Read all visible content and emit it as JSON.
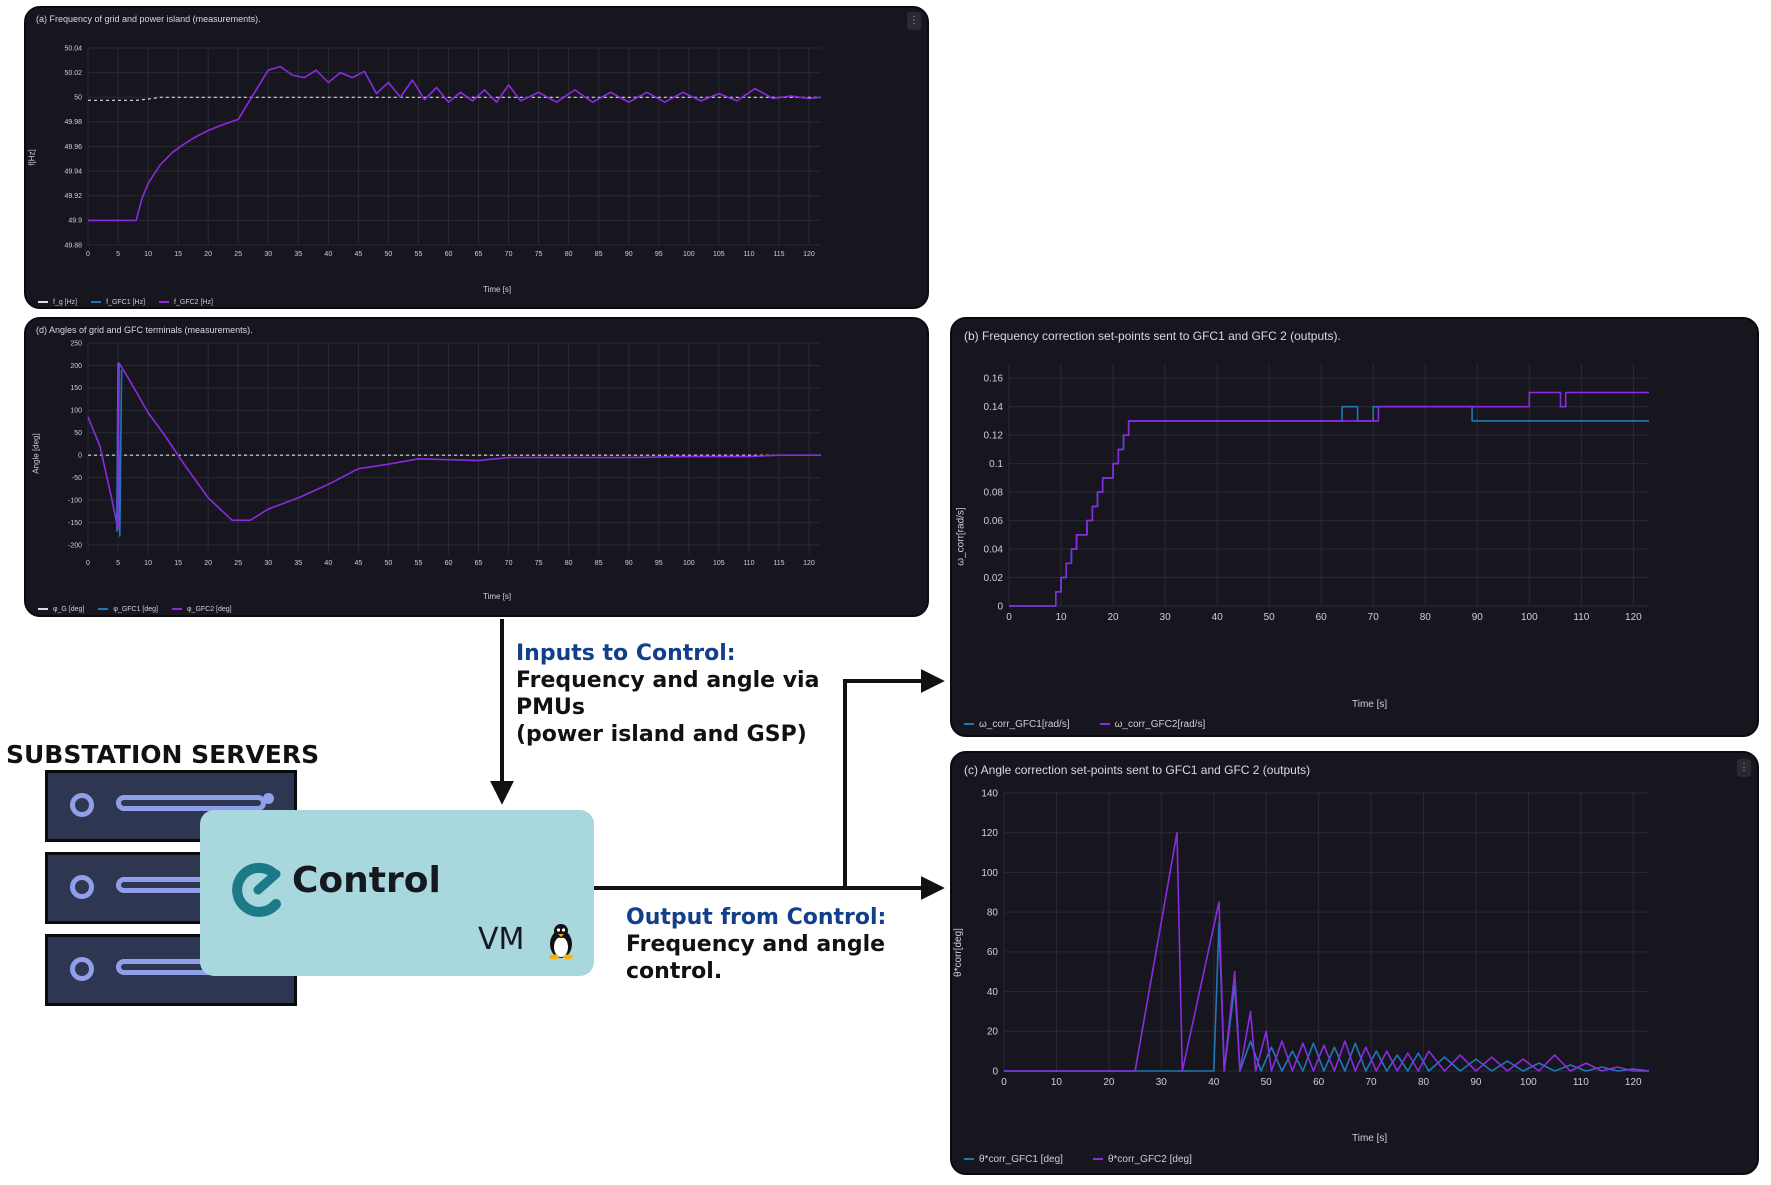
{
  "colors": {
    "bg": "#17161f",
    "grid": "#2a2a35",
    "purple": "#8a2be2",
    "blue": "#1f78b4",
    "white": "#dddddd",
    "highlight": "#123f8a"
  },
  "panel_a": {
    "title": "(a) Frequency of grid and power island (measurements).",
    "ylabel": "f[Hz]",
    "xlabel": "Time [s]",
    "legend": [
      "f_g [Hz]",
      "f_GFC1 [Hz]",
      "f_GFC2 [Hz]"
    ]
  },
  "panel_d": {
    "title": "(d) Angles of grid and GFC terminals (measurements).",
    "ylabel": "Angle [deg]",
    "xlabel": "Time [s]",
    "legend": [
      "φ_G [deg]",
      "φ_GFC1 [deg]",
      "φ_GFC2 [deg]"
    ]
  },
  "panel_b": {
    "title": "(b) Frequency correction set-points sent to GFC1 and GFC 2 (outputs).",
    "ylabel": "ω_corr[rad/s]",
    "xlabel": "Time [s]",
    "legend": [
      "ω_corr_GFC1[rad/s]",
      "ω_corr_GFC2[rad/s]"
    ]
  },
  "panel_c": {
    "title": "(c) Angle correction set-points sent to GFC1 and GFC 2 (outputs)",
    "ylabel": "θ*corr[deg]",
    "xlabel": "Time [s]",
    "legend": [
      "θ*corr_GFC1 [deg]",
      "θ*corr_GFC2 [deg]"
    ]
  },
  "inputs_text": {
    "heading": "Inputs to Control:",
    "line1": "Frequency and angle via",
    "line2": "PMUs",
    "line3": "(power island and GSP)"
  },
  "output_text": {
    "heading": "Output from Control:",
    "line1": "Frequency and angle",
    "line2": "control."
  },
  "servers_title": "SUBSTATION SERVERS",
  "vm": {
    "brand": "Control",
    "label": "VM"
  },
  "chart_data": [
    {
      "id": "a",
      "type": "line",
      "title": "(a) Frequency of grid and power island (measurements).",
      "xlabel": "Time [s]",
      "ylabel": "f[Hz]",
      "xlim": [
        0,
        122
      ],
      "ylim": [
        49.88,
        50.04
      ],
      "xticks": [
        0,
        5,
        10,
        15,
        20,
        25,
        30,
        35,
        40,
        45,
        50,
        55,
        60,
        65,
        70,
        75,
        80,
        85,
        90,
        95,
        100,
        105,
        110,
        115,
        120
      ],
      "yticks": [
        49.88,
        49.9,
        49.92,
        49.94,
        49.96,
        49.98,
        50,
        50.02,
        50.04
      ],
      "ytick_labels": [
        "49.88",
        "49.9",
        "49.92",
        "49.94",
        "49.96",
        "49.98",
        "50",
        "50.02",
        "50.04"
      ],
      "series": [
        {
          "name": "f_g [Hz]",
          "color": "#dddddd",
          "dashed": true,
          "x": [
            0,
            5,
            8,
            10,
            12,
            122
          ],
          "y": [
            49.9975,
            49.9975,
            49.9975,
            49.9985,
            50,
            50
          ]
        },
        {
          "name": "f_GFC2 [Hz]",
          "color": "#8a2be2",
          "x": [
            0,
            4,
            8,
            9,
            10,
            12,
            14,
            16,
            18,
            20,
            22,
            25,
            27,
            30,
            32,
            34,
            36,
            38,
            40,
            42,
            44,
            46,
            48,
            50,
            52,
            54,
            56,
            58,
            60,
            62,
            64,
            66,
            68,
            70,
            72,
            75,
            78,
            81,
            84,
            87,
            90,
            93,
            96,
            99,
            102,
            105,
            108,
            111,
            114,
            117,
            120,
            122
          ],
          "y": [
            49.9,
            49.9,
            49.9,
            49.918,
            49.93,
            49.945,
            49.955,
            49.962,
            49.968,
            49.973,
            49.977,
            49.982,
            49.998,
            50.022,
            50.025,
            50.018,
            50.016,
            50.022,
            50.012,
            50.02,
            50.016,
            50.021,
            50.003,
            50.012,
            50.0,
            50.014,
            49.998,
            50.008,
            49.996,
            50.004,
            49.997,
            50.006,
            49.996,
            50.01,
            49.997,
            50.004,
            49.996,
            50.006,
            49.996,
            50.004,
            49.996,
            50.004,
            49.996,
            50.004,
            49.997,
            50.003,
            49.997,
            50.007,
            49.999,
            50.001,
            49.999,
            50.0
          ]
        }
      ],
      "legend_entries": [
        "f_g [Hz]",
        "f_GFC1 [Hz]",
        "f_GFC2 [Hz]"
      ]
    },
    {
      "id": "d",
      "type": "line",
      "title": "(d) Angles of grid and GFC terminals (measurements).",
      "xlabel": "Time [s]",
      "ylabel": "Angle [deg]",
      "xlim": [
        0,
        122
      ],
      "ylim": [
        -220,
        250
      ],
      "xticks": [
        0,
        5,
        10,
        15,
        20,
        25,
        30,
        35,
        40,
        45,
        50,
        55,
        60,
        65,
        70,
        75,
        80,
        85,
        90,
        95,
        100,
        105,
        110,
        115,
        120
      ],
      "yticks": [
        -200,
        -150,
        -100,
        -50,
        0,
        50,
        100,
        150,
        200,
        250
      ],
      "series": [
        {
          "name": "φ_G [deg]",
          "color": "#dddddd",
          "dashed": true,
          "x": [
            0,
            122
          ],
          "y": [
            0,
            0
          ]
        },
        {
          "name": "φ_GFC1 [deg]",
          "color": "#1f78b4",
          "x": [
            4.8,
            5,
            5.3,
            5.6
          ],
          "y": [
            -170,
            205,
            -180,
            190
          ]
        },
        {
          "name": "φ_GFC2 [deg]",
          "color": "#8a2be2",
          "x": [
            0,
            2,
            4,
            5,
            5.2,
            7,
            10,
            13,
            16,
            20,
            24,
            27,
            30,
            35,
            40,
            45,
            50,
            55,
            60,
            65,
            70,
            80,
            90,
            100,
            110,
            115,
            122
          ],
          "y": [
            85,
            20,
            -100,
            -165,
            205,
            165,
            95,
            40,
            -20,
            -95,
            -145,
            -145,
            -120,
            -95,
            -65,
            -30,
            -20,
            -8,
            -10,
            -12,
            -5,
            -5,
            -5,
            -3,
            -3,
            0,
            0
          ]
        }
      ],
      "legend_entries": [
        "φ_G [deg]",
        "φ_GFC1 [deg]",
        "φ_GFC2 [deg]"
      ]
    },
    {
      "id": "b",
      "type": "line",
      "title": "(b) Frequency correction set-points sent to GFC1 and GFC 2 (outputs).",
      "xlabel": "Time [s]",
      "ylabel": "ω_corr[rad/s]",
      "xlim": [
        0,
        123
      ],
      "ylim": [
        0,
        0.17
      ],
      "xticks": [
        0,
        10,
        20,
        30,
        40,
        50,
        60,
        70,
        80,
        90,
        100,
        110,
        120
      ],
      "yticks": [
        0,
        0.02,
        0.04,
        0.06,
        0.08,
        0.1,
        0.12,
        0.14,
        0.16
      ],
      "ytick_labels": [
        "0",
        "0.02",
        "0.04",
        "0.06",
        "0.08",
        "0.1",
        "0.12",
        "0.14",
        "0.16"
      ],
      "series": [
        {
          "name": "ω_corr_GFC1[rad/s]",
          "color": "#1f78b4",
          "step": true,
          "x": [
            0,
            8,
            9,
            10,
            11,
            12,
            13,
            14,
            15,
            16,
            17,
            18,
            19,
            20,
            21,
            22,
            23,
            64,
            67,
            70,
            71,
            89,
            123
          ],
          "y": [
            0,
            0,
            0.01,
            0.02,
            0.03,
            0.04,
            0.05,
            0.05,
            0.06,
            0.07,
            0.08,
            0.09,
            0.09,
            0.1,
            0.11,
            0.12,
            0.13,
            0.14,
            0.13,
            0.14,
            0.14,
            0.13,
            0.13
          ]
        },
        {
          "name": "ω_corr_GFC2[rad/s]",
          "color": "#8a2be2",
          "step": true,
          "x": [
            0,
            8,
            9,
            10,
            11,
            12,
            13,
            14,
            15,
            16,
            17,
            18,
            19,
            20,
            21,
            22,
            23,
            71,
            100,
            106,
            107,
            123
          ],
          "y": [
            0,
            0,
            0.01,
            0.02,
            0.03,
            0.04,
            0.05,
            0.05,
            0.06,
            0.07,
            0.08,
            0.09,
            0.09,
            0.1,
            0.11,
            0.12,
            0.13,
            0.14,
            0.15,
            0.14,
            0.15,
            0.15
          ]
        }
      ],
      "legend_entries": [
        "ω_corr_GFC1[rad/s]",
        "ω_corr_GFC2[rad/s]"
      ]
    },
    {
      "id": "c",
      "type": "line",
      "title": "(c) Angle correction set-points sent to GFC1 and GFC 2 (outputs)",
      "xlabel": "Time [s]",
      "ylabel": "θ*corr[deg]",
      "xlim": [
        0,
        123
      ],
      "ylim": [
        0,
        140
      ],
      "xticks": [
        0,
        10,
        20,
        30,
        40,
        50,
        60,
        70,
        80,
        90,
        100,
        110,
        120
      ],
      "yticks": [
        0,
        20,
        40,
        60,
        80,
        100,
        120,
        140
      ],
      "series": [
        {
          "name": "θ*corr_GFC1 [deg]",
          "color": "#1f78b4",
          "x": [
            0,
            40,
            41,
            42,
            44,
            45,
            47,
            49,
            51,
            53,
            55,
            57,
            59,
            61,
            63,
            65,
            67,
            69,
            71,
            73,
            75,
            77,
            79,
            81,
            84,
            87,
            90,
            93,
            96,
            99,
            102,
            105,
            108,
            111,
            114,
            117,
            120,
            123
          ],
          "y": [
            0,
            0,
            75,
            0,
            43,
            0,
            15,
            0,
            12,
            0,
            10,
            0,
            14,
            0,
            12,
            0,
            14,
            0,
            10,
            0,
            8,
            0,
            9,
            0,
            7,
            0,
            6,
            0,
            5,
            0,
            4,
            0,
            3,
            0,
            2,
            0,
            1,
            0
          ]
        },
        {
          "name": "θ*corr_GFC2 [deg]",
          "color": "#8a2be2",
          "x": [
            0,
            25,
            33,
            34,
            41,
            42,
            44,
            45,
            47,
            48,
            50,
            51,
            53,
            55,
            57,
            59,
            61,
            63,
            65,
            67,
            69,
            71,
            73,
            75,
            77,
            79,
            81,
            84,
            87,
            90,
            93,
            96,
            99,
            102,
            105,
            108,
            111,
            114,
            117,
            120,
            123
          ],
          "y": [
            0,
            0,
            120,
            0,
            85,
            0,
            50,
            0,
            30,
            0,
            20,
            0,
            15,
            0,
            14,
            0,
            13,
            0,
            15,
            0,
            12,
            0,
            10,
            0,
            9,
            0,
            10,
            0,
            8,
            0,
            7,
            0,
            6,
            0,
            8,
            0,
            4,
            0,
            2,
            0,
            0
          ]
        }
      ],
      "legend_entries": [
        "θ*corr_GFC1 [deg]",
        "θ*corr_GFC2 [deg]"
      ]
    }
  ]
}
